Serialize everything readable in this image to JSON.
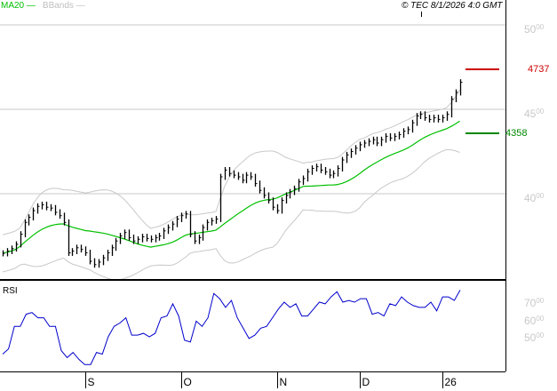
{
  "legend": {
    "ma": "MA20",
    "bbands": "BBands"
  },
  "copyright": "© TEC 8/1/2026 4:0 GMT",
  "colors": {
    "bars": "#000000",
    "ma": "#00c000",
    "bbands": "#c8c8c8",
    "rsi": "#0000cc",
    "upper_marker": "#cc0000",
    "lower_marker": "#008800"
  },
  "chart_data": [
    {
      "type": "ohlc-bar",
      "ylim": [
        3540,
        5060
      ],
      "yticks": [
        {
          "value": 5000,
          "main": "50",
          "frac": "00"
        },
        {
          "value": 4500,
          "main": "45",
          "frac": "00"
        },
        {
          "value": 4000,
          "main": "40",
          "frac": "00"
        }
      ],
      "grid": true,
      "close": [
        3647,
        3660,
        3675,
        3700,
        3760,
        3830,
        3860,
        3900,
        3925,
        3935,
        3920,
        3915,
        3890,
        3870,
        3830,
        3650,
        3660,
        3680,
        3670,
        3650,
        3600,
        3580,
        3595,
        3620,
        3650,
        3680,
        3720,
        3750,
        3770,
        3740,
        3720,
        3730,
        3745,
        3735,
        3730,
        3740,
        3750,
        3780,
        3800,
        3820,
        3850,
        3870,
        3880,
        3760,
        3720,
        3740,
        3800,
        3830,
        3840,
        3850,
        4100,
        4140,
        4120,
        4110,
        4100,
        4080,
        4110,
        4100,
        4060,
        4020,
        3990,
        3960,
        3920,
        3900,
        3960,
        3990,
        4010,
        4030,
        4070,
        4090,
        4130,
        4150,
        4160,
        4140,
        4130,
        4110,
        4120,
        4150,
        4200,
        4230,
        4250,
        4270,
        4290,
        4300,
        4310,
        4320,
        4300,
        4320,
        4340,
        4330,
        4340,
        4350,
        4370,
        4380,
        4420,
        4460,
        4470,
        4450,
        4440,
        4450,
        4440,
        4450,
        4470,
        4560,
        4600,
        4660
      ],
      "markers": [
        {
          "label": "4737",
          "value": 4737,
          "color": "#cc0000"
        },
        {
          "label": "4358",
          "value": 4358,
          "color": "#008800"
        }
      ],
      "overlays": [
        "MA20",
        "BBands"
      ]
    },
    {
      "type": "line",
      "title": "RSI",
      "ylim": [
        25,
        82
      ],
      "yticks": [
        {
          "value": 70,
          "main": "70",
          "frac": "00"
        },
        {
          "value": 60,
          "main": "60",
          "frac": "00"
        },
        {
          "value": 50,
          "main": "50",
          "frac": "00"
        }
      ],
      "values": [
        40,
        43,
        56,
        56,
        63,
        64,
        61,
        61,
        56,
        56,
        42,
        38,
        41,
        37,
        34,
        34,
        41,
        40,
        50,
        56,
        58,
        61,
        51,
        51,
        52,
        50,
        52,
        61,
        62,
        69,
        62,
        48,
        47,
        59,
        56,
        61,
        75,
        72,
        67,
        71,
        61,
        55,
        49,
        51,
        55,
        56,
        61,
        66,
        70,
        67,
        69,
        62,
        62,
        66,
        70,
        69,
        73,
        76,
        70,
        71,
        70,
        72,
        72,
        63,
        64,
        62,
        69,
        68,
        73,
        70,
        68,
        67,
        67,
        70,
        65,
        73,
        73,
        71,
        77
      ]
    }
  ],
  "xaxis": {
    "ticks": [
      {
        "label": "S",
        "index": 19
      },
      {
        "label": "O",
        "index": 41
      },
      {
        "label": "N",
        "index": 63
      },
      {
        "label": "D",
        "index": 82
      },
      {
        "label": "26",
        "index": 101
      }
    ]
  }
}
